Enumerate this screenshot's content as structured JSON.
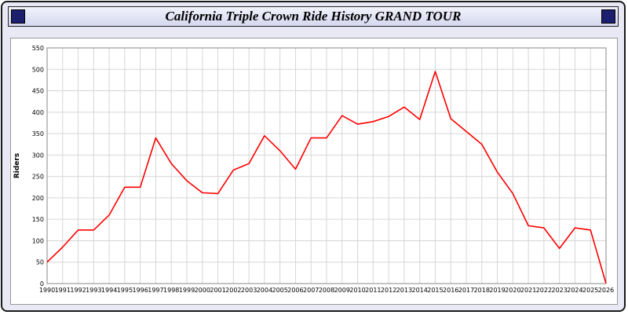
{
  "header": {
    "title": "California Triple Crown Ride History GRAND TOUR"
  },
  "chart_data": {
    "type": "line",
    "title": "California Triple Crown Ride History GRAND TOUR",
    "xlabel": "",
    "ylabel": "Riders",
    "ylim": [
      0,
      550
    ],
    "ytick_step": 50,
    "grid": true,
    "grid_color": "#d6d6d6",
    "line_color": "#ff0000",
    "x": [
      1990,
      1991,
      1992,
      1993,
      1994,
      1995,
      1996,
      1997,
      1998,
      1999,
      2000,
      2001,
      2002,
      2003,
      2004,
      2005,
      2006,
      2007,
      2008,
      2009,
      2010,
      2011,
      2012,
      2013,
      2014,
      2015,
      2016,
      2017,
      2018,
      2019,
      2020,
      2021,
      2022,
      2023,
      2024,
      2025,
      2026
    ],
    "values": [
      50,
      85,
      125,
      125,
      160,
      225,
      225,
      340,
      280,
      240,
      212,
      210,
      265,
      280,
      345,
      310,
      267,
      340,
      340,
      392,
      372,
      378,
      390,
      412,
      383,
      495,
      385,
      355,
      325,
      260,
      210,
      135,
      130,
      82,
      130,
      125,
      0
    ]
  }
}
